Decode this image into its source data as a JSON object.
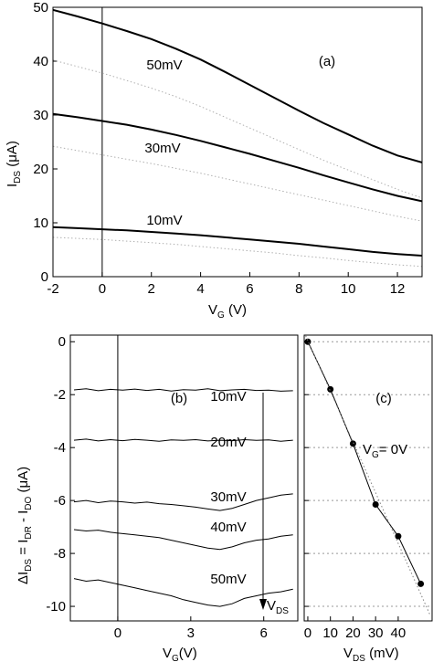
{
  "chart_data": [
    {
      "type": "line",
      "panel_label": "(a)",
      "x_label_parts": [
        "V",
        "G",
        " (V)"
      ],
      "y_label_parts": [
        "I",
        "DS",
        " (μA)"
      ],
      "x": [
        -2,
        -1,
        0,
        1,
        2,
        3,
        4,
        5,
        6,
        7,
        8,
        9,
        10,
        11,
        12,
        13
      ],
      "xlim": [
        -2,
        13
      ],
      "ylim": [
        0,
        50
      ],
      "xticks": [
        -2,
        0,
        2,
        4,
        6,
        8,
        10,
        12
      ],
      "yticks": [
        0,
        10,
        20,
        30,
        40,
        50
      ],
      "vline_x": 0,
      "series": [
        {
          "name": "50mV",
          "color": "#000000",
          "line_style": "solid",
          "values": [
            49.5,
            48.3,
            47,
            45.6,
            44.1,
            42.3,
            40.3,
            38.0,
            35.6,
            33.2,
            30.8,
            28.5,
            26.4,
            24.3,
            22.5,
            21.2
          ]
        },
        {
          "color": "#b0b0b0",
          "line_style": "dotted",
          "values": [
            40.2,
            39,
            37.8,
            36.4,
            35,
            33.4,
            31.6,
            29.6,
            27.6,
            25.6,
            23.6,
            21.6,
            19.8,
            18,
            16.2,
            14.6
          ]
        },
        {
          "name": "30mV",
          "color": "#000000",
          "line_style": "solid",
          "values": [
            30.2,
            29.6,
            28.9,
            28.2,
            27.3,
            26.3,
            25.2,
            24,
            22.8,
            21.5,
            20.2,
            18.8,
            17.5,
            16.2,
            15,
            14
          ]
        },
        {
          "color": "#b0b0b0",
          "line_style": "dotted",
          "values": [
            24.2,
            23.4,
            22.6,
            21.8,
            21,
            20.1,
            19.2,
            18.2,
            17.2,
            16.2,
            15.2,
            14.2,
            13.2,
            12.2,
            11.2,
            10.3
          ]
        },
        {
          "name": "10mV",
          "color": "#000000",
          "line_style": "solid",
          "values": [
            9.2,
            9,
            8.8,
            8.6,
            8.3,
            8,
            7.7,
            7.3,
            6.9,
            6.5,
            6.1,
            5.6,
            5.1,
            4.6,
            4.2,
            3.9
          ]
        },
        {
          "color": "#b0b0b0",
          "line_style": "dotted",
          "values": [
            7.3,
            7.1,
            6.9,
            6.6,
            6.3,
            6,
            5.6,
            5.2,
            4.8,
            4.4,
            3.9,
            3.5,
            3,
            2.6,
            2.2,
            1.9
          ]
        }
      ]
    },
    {
      "type": "line",
      "panel_label": "(b)",
      "x_label_parts": [
        "V",
        "G",
        "(V)"
      ],
      "y_label_parts": [
        "ΔI",
        "DS",
        " = I",
        "DR",
        " - I",
        "DO",
        " (μA)"
      ],
      "arrow_label_parts": [
        "V",
        "DS"
      ],
      "x": [
        -1.8,
        -1.3,
        -0.8,
        -0.3,
        0.2,
        0.7,
        1.2,
        1.7,
        2.2,
        2.7,
        3.2,
        3.7,
        4.2,
        4.7,
        5.2,
        5.7,
        6.2,
        6.7,
        7.2
      ],
      "xlim": [
        -1.95,
        7.4
      ],
      "ylim": [
        -10.55,
        0.25
      ],
      "xticks": [
        0,
        3,
        6
      ],
      "yticks": [
        0,
        -2,
        -4,
        -6,
        -8,
        -10
      ],
      "vline_x": 0,
      "series": [
        {
          "name": "10mV",
          "color": "#000000",
          "line_style": "solid",
          "values": [
            -1.82,
            -1.78,
            -1.85,
            -1.8,
            -1.83,
            -1.79,
            -1.84,
            -1.8,
            -1.86,
            -1.81,
            -1.83,
            -1.78,
            -1.85,
            -1.82,
            -1.8,
            -1.84,
            -1.83,
            -1.87,
            -1.85
          ]
        },
        {
          "name": "20mV",
          "color": "#000000",
          "line_style": "solid",
          "values": [
            -3.72,
            -3.68,
            -3.75,
            -3.7,
            -3.74,
            -3.69,
            -3.72,
            -3.76,
            -3.71,
            -3.73,
            -3.7,
            -3.75,
            -3.72,
            -3.74,
            -3.7,
            -3.73,
            -3.71,
            -3.76,
            -3.72
          ]
        },
        {
          "name": "30mV",
          "color": "#000000",
          "line_style": "solid",
          "values": [
            -6.05,
            -6.0,
            -6.08,
            -6.02,
            -6.05,
            -6.1,
            -6.06,
            -6.12,
            -6.15,
            -6.2,
            -6.25,
            -6.32,
            -6.38,
            -6.3,
            -6.15,
            -6.0,
            -5.9,
            -5.8,
            -5.75
          ]
        },
        {
          "name": "40mV",
          "color": "#000000",
          "line_style": "solid",
          "values": [
            -7.1,
            -7.15,
            -7.12,
            -7.2,
            -7.25,
            -7.3,
            -7.35,
            -7.4,
            -7.5,
            -7.6,
            -7.7,
            -7.8,
            -7.85,
            -7.75,
            -7.6,
            -7.5,
            -7.45,
            -7.35,
            -7.3
          ]
        },
        {
          "name": "50mV",
          "color": "#000000",
          "line_style": "solid",
          "values": [
            -8.95,
            -9.05,
            -9.0,
            -9.1,
            -9.2,
            -9.3,
            -9.4,
            -9.5,
            -9.6,
            -9.75,
            -9.85,
            -9.95,
            -10.0,
            -9.9,
            -9.7,
            -9.6,
            -9.5,
            -9.45,
            -9.35
          ]
        }
      ]
    },
    {
      "type": "line",
      "panel_label": "(c)",
      "x_label_parts": [
        "V",
        "DS",
        " (mV)"
      ],
      "note_parts": [
        "V",
        "G",
        "= 0V"
      ],
      "xlim": [
        -1.6,
        55
      ],
      "ylim": [
        -10.55,
        0.25
      ],
      "xticks": [
        0,
        10,
        20,
        30,
        40
      ],
      "yticks": [
        0,
        -2,
        -4,
        -6,
        -8,
        -10
      ],
      "ytick_labels": false,
      "grid": true,
      "series": [
        {
          "color": "#000000",
          "line_style": "solid",
          "markers": true,
          "x": [
            0,
            10,
            20,
            30,
            40,
            50
          ],
          "values": [
            0,
            -1.8,
            -3.85,
            -6.15,
            -7.35,
            -9.15
          ]
        },
        {
          "color": "#808080",
          "line_style": "dotted",
          "x": [
            -1.6,
            54
          ],
          "values": [
            0.35,
            -10.3
          ]
        }
      ]
    }
  ]
}
